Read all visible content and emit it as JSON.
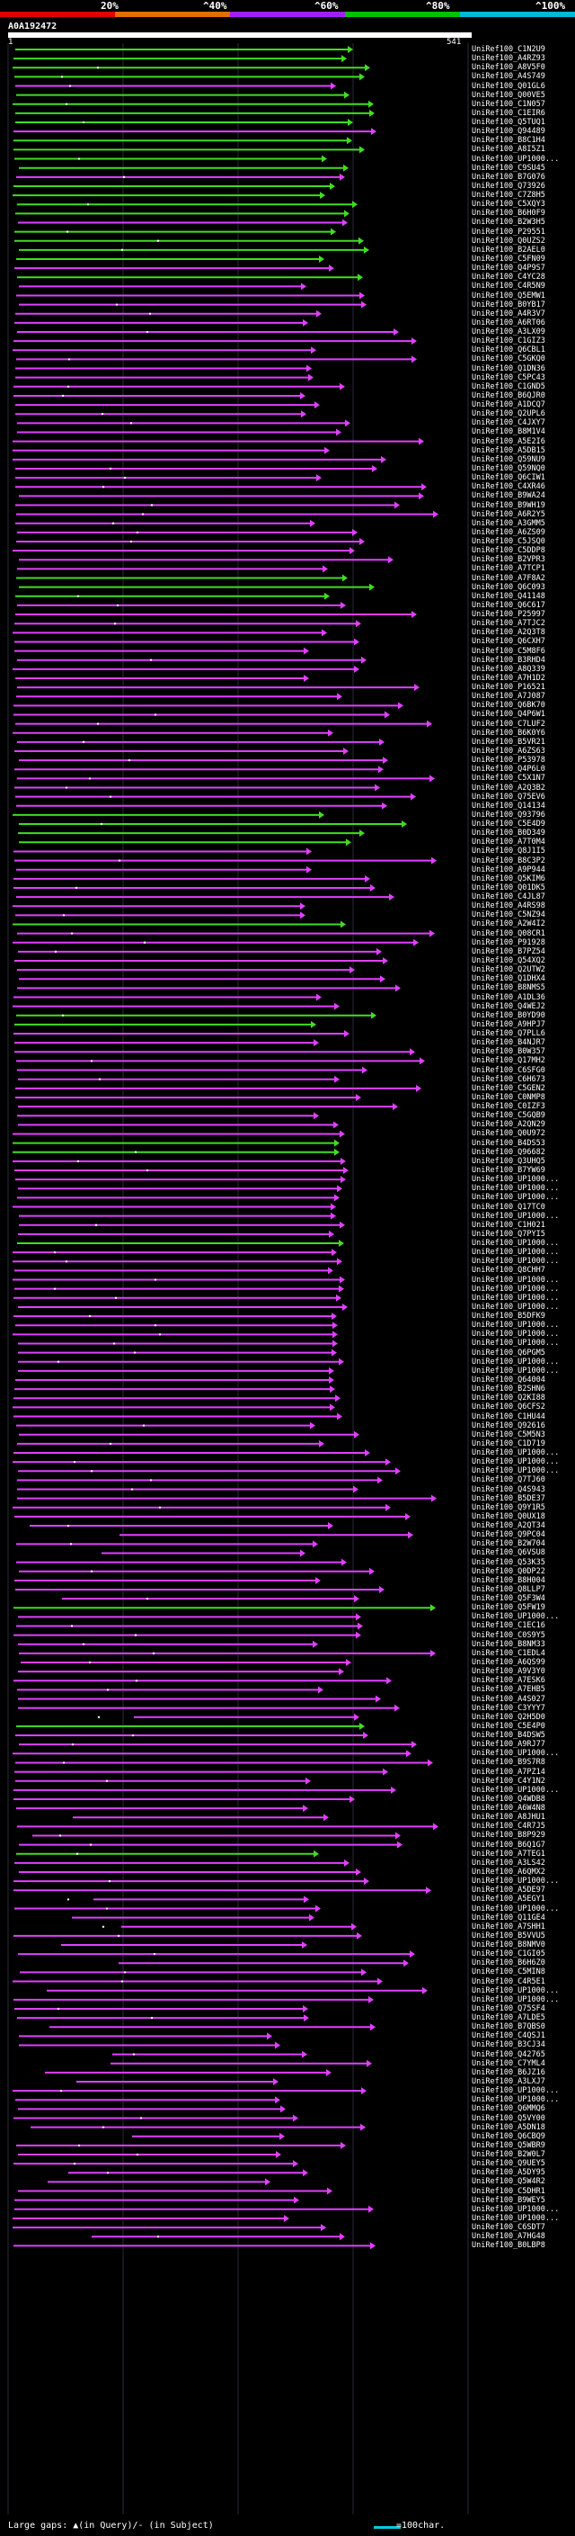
{
  "scale_bar": {
    "ticks": [
      "20%",
      "^40%",
      "^60%",
      "^80%",
      "^100%"
    ],
    "colors": [
      "#e00000",
      "#e07000",
      "#a020f0",
      "#00c000",
      "#00b8d8"
    ]
  },
  "query": {
    "id": "A0A192472",
    "start": "1",
    "end": "541"
  },
  "colors": {
    "magenta_hit": "#e040ff",
    "green_hit": "#40dd20",
    "gridline": "#2a2a3a",
    "footer_bar": "#00ccdd"
  },
  "hits": [
    "UniRef100_C1N2U9",
    "UniRef100_A4RZ93",
    "UniRef100_A8V5F0",
    "UniRef100_A4S749",
    "UniRef100_Q01GL6",
    "UniRef100_Q00VE5",
    "UniRef100_C1N057",
    "UniRef100_C1EIR6",
    "UniRef100_Q5TUQ1",
    "UniRef100_Q94489",
    "UniRef100_B8C1H4",
    "UniRef100_A8I5Z1",
    "UniRef100_UP1000...",
    "UniRef100_C9SU45",
    "UniRef100_B7G076",
    "UniRef100_Q73926",
    "UniRef100_C7Z8H5",
    "UniRef100_C5XQY3",
    "UniRef100_B6H0F9",
    "UniRef100_B2W3H5",
    "UniRef100_P29551",
    "UniRef100_Q0UZS2",
    "UniRef100_B2AEL0",
    "UniRef100_C5FN09",
    "UniRef100_Q4P9S7",
    "UniRef100_C4YC28",
    "UniRef100_C4R5N9",
    "UniRef100_Q5EMW1",
    "UniRef100_B0YB17",
    "UniRef100_A4R3V7",
    "UniRef100_A6RT06",
    "UniRef100_A3LX09",
    "UniRef100_C1GIZ3",
    "UniRef100_Q6CBL1",
    "UniRef100_C5GKQ0",
    "UniRef100_Q1DN36",
    "UniRef100_C5PC43",
    "UniRef100_C1GND5",
    "UniRef100_B6QJR0",
    "UniRef100_A1DCQ7",
    "UniRef100_Q2UPL6",
    "UniRef100_C4JXY7",
    "UniRef100_B8M1V4",
    "UniRef100_A5E2I6",
    "UniRef100_A5DB15",
    "UniRef100_Q59NU9",
    "UniRef100_Q59NQ0",
    "UniRef100_Q6CIW1",
    "UniRef100_C4XR46",
    "UniRef100_B9WA24",
    "UniRef100_B9WH19",
    "UniRef100_A6R2Y5",
    "UniRef100_A3GMM5",
    "UniRef100_A6ZS09",
    "UniRef100_C5JSQ0",
    "UniRef100_C5DDP8",
    "UniRef100_B2VPR3",
    "UniRef100_A7TCP1",
    "UniRef100_A7F8A2",
    "UniRef100_Q6C093",
    "UniRef100_Q41148",
    "UniRef100_Q6C617",
    "UniRef100_P25997",
    "UniRef100_A7TJC2",
    "UniRef100_A2Q3T8",
    "UniRef100_Q6CXH7",
    "UniRef100_C5M8F6",
    "UniRef100_B3RHD4",
    "UniRef100_A8Q339",
    "UniRef100_A7H1D2",
    "UniRef100_P16521",
    "UniRef100_A7J087",
    "UniRef100_Q6BK70",
    "UniRef100_Q4P6W1",
    "UniRef100_C7LUF2",
    "UniRef100_B6K0Y6",
    "UniRef100_B5VR21",
    "UniRef100_A6ZS63",
    "UniRef100_P53978",
    "UniRef100_Q4P6L0",
    "UniRef100_C5X1N7",
    "UniRef100_A2Q3B2",
    "UniRef100_Q75EV6",
    "UniRef100_Q14134",
    "UniRef100_Q93796",
    "UniRef100_C5E4D9",
    "UniRef100_B0D349",
    "UniRef100_A7T0M4",
    "UniRef100_Q8J1I5",
    "UniRef100_B8C3P2",
    "UniRef100_A9P944",
    "UniRef100_Q5KIM6",
    "UniRef100_Q01DK5",
    "UniRef100_C4JL87",
    "UniRef100_A4RS98",
    "UniRef100_C5NZ94",
    "UniRef100_A2W4I2",
    "UniRef100_Q08CR1",
    "UniRef100_P91928",
    "UniRef100_B7PZ54",
    "UniRef100_Q54XQ2",
    "UniRef100_Q2UTW2",
    "UniRef100_Q1DHX4",
    "UniRef100_B8NMS5",
    "UniRef100_A1DL36",
    "UniRef100_Q4WEJ2",
    "UniRef100_B0YD90",
    "UniRef100_A9HPJ7",
    "UniRef100_Q7PLL6",
    "UniRef100_B4NJR7",
    "UniRef100_B0W357",
    "UniRef100_Q17MH2",
    "UniRef100_C6SFG0",
    "UniRef100_C6H673",
    "UniRef100_C5GEN2",
    "UniRef100_C0NMP8",
    "UniRef100_C0IZF3",
    "UniRef100_C5GQB9",
    "UniRef100_A2QN29",
    "UniRef100_Q0U972",
    "UniRef100_B4DS53",
    "UniRef100_Q96682",
    "UniRef100_Q3UHQ5",
    "UniRef100_B7YW69",
    "UniRef100_UP1000...",
    "UniRef100_UP1000...",
    "UniRef100_UP1000...",
    "UniRef100_Q17TC0",
    "UniRef100_UP1000...",
    "UniRef100_C1H021",
    "UniRef100_Q7PYI5",
    "UniRef100_UP1000...",
    "UniRef100_UP1000...",
    "UniRef100_UP1000...",
    "UniRef100_Q8CHH7",
    "UniRef100_UP1000...",
    "UniRef100_UP1000...",
    "UniRef100_UP1000...",
    "UniRef100_UP1000...",
    "UniRef100_B5DFK9",
    "UniRef100_UP1000...",
    "UniRef100_UP1000...",
    "UniRef100_UP1000...",
    "UniRef100_Q6PGM5",
    "UniRef100_UP1000...",
    "UniRef100_UP1000...",
    "UniRef100_Q64004",
    "UniRef100_B2SHN6",
    "UniRef100_Q2KI88",
    "UniRef100_Q6CFS2",
    "UniRef100_C1HU44",
    "UniRef100_Q92616",
    "UniRef100_C5M5N3",
    "UniRef100_C1D719",
    "UniRef100_UP1000...",
    "UniRef100_UP1000...",
    "UniRef100_UP1000...",
    "UniRef100_Q7TJ60",
    "UniRef100_Q4S943",
    "UniRef100_B5DE37",
    "UniRef100_Q9Y1R5",
    "UniRef100_Q0UX18",
    "UniRef100_A2QT34",
    "UniRef100_Q9PC04",
    "UniRef100_B2W704",
    "UniRef100_Q6VSU8",
    "UniRef100_Q53K35",
    "UniRef100_Q0DP22",
    "UniRef100_B8H004",
    "UniRef100_Q8LLP7",
    "UniRef100_Q5F3W4",
    "UniRef100_Q5FW19",
    "UniRef100_UP1000...",
    "UniRef100_C1EC16",
    "UniRef100_C0S9Y5",
    "UniRef100_B8NM33",
    "UniRef100_C1EDL4",
    "UniRef100_A6QS99",
    "UniRef100_A9V3Y0",
    "UniRef100_A7ESK6",
    "UniRef100_A7EHB5",
    "UniRef100_A4S027",
    "UniRef100_C3YYY7",
    "UniRef100_Q2H5D0",
    "UniRef100_C5E4P0",
    "UniRef100_B4DSW5",
    "UniRef100_A9RJ77",
    "UniRef100_UP1000...",
    "UniRef100_B9S7R8",
    "UniRef100_A7PZ14",
    "UniRef100_C4Y1N2",
    "UniRef100_UP1000...",
    "UniRef100_Q4WDB8",
    "UniRef100_A6W4N8",
    "UniRef100_A8JHU1",
    "UniRef100_C4R7J5",
    "UniRef100_B8P929",
    "UniRef100_B6Q1G7",
    "UniRef100_A7TEG1",
    "UniRef100_A3LS42",
    "UniRef100_A6QMX2",
    "UniRef100_UP1000...",
    "UniRef100_A5DE97",
    "UniRef100_A5EGY1",
    "UniRef100_UP1000...",
    "UniRef100_Q11GE4",
    "UniRef100_A7SHH1",
    "UniRef100_B5VVU5",
    "UniRef100_B8NMV0",
    "UniRef100_C1GI05",
    "UniRef100_B6H6Z0",
    "UniRef100_C5MIN8",
    "UniRef100_C4R5E1",
    "UniRef100_UP1000...",
    "UniRef100_UP1000...",
    "UniRef100_Q75SF4",
    "UniRef100_A7LDE5",
    "UniRef100_B7QBS0",
    "UniRef100_C4QSJ1",
    "UniRef100_B3CJ34",
    "UniRef100_Q42765",
    "UniRef100_C7YML4",
    "UniRef100_B6JZ16",
    "UniRef100_A3LXJ7",
    "UniRef100_UP1000...",
    "UniRef100_UP1000...",
    "UniRef100_Q6MMQ6",
    "UniRef100_Q5VY00",
    "UniRef100_A5DN18",
    "UniRef100_Q6CBQ9",
    "UniRef100_Q5WBR9",
    "UniRef100_B2W0L7",
    "UniRef100_Q9UEY5",
    "UniRef100_A5DY95",
    "UniRef100_Q5W4R2",
    "UniRef100_C5DHR1",
    "UniRef100_B9WEY5",
    "UniRef100_UP1000...",
    "UniRef100_UP1000...",
    "UniRef100_C6SDT7",
    "UniRef100_A7HG48",
    "UniRef100_B0LBP8"
  ],
  "footer": {
    "legend_text": "Large gaps: ▲(in Query)/- (in Subject)",
    "scale_text": "=100char."
  }
}
